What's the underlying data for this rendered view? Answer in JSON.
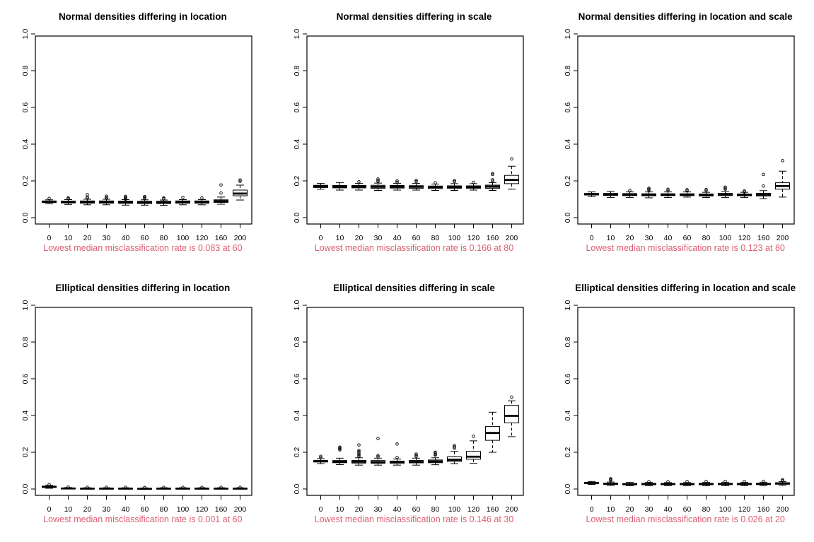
{
  "colors": {
    "background": "#ffffff",
    "axis_and_text": "#000000",
    "box_fill": "#ffffff",
    "caption_pink": "#dc5f73"
  },
  "chart_data": [
    {
      "type": "boxplot",
      "title": "Normal densities differing in location",
      "caption": "Lowest median misclassification rate is 0.083 at 60",
      "xlabel": "",
      "ylabel": "",
      "ylim": [
        0,
        1
      ],
      "yticks": [
        0.0,
        0.2,
        0.4,
        0.6,
        0.8,
        1.0
      ],
      "categories": [
        "0",
        "10",
        "20",
        "30",
        "40",
        "60",
        "80",
        "100",
        "120",
        "160",
        "200"
      ],
      "boxes": [
        {
          "low": 0.075,
          "q1": 0.082,
          "median": 0.086,
          "q3": 0.091,
          "high": 0.097,
          "outliers": [
            0.105
          ]
        },
        {
          "low": 0.072,
          "q1": 0.08,
          "median": 0.085,
          "q3": 0.09,
          "high": 0.098,
          "outliers": [
            0.103,
            0.108
          ]
        },
        {
          "low": 0.07,
          "q1": 0.079,
          "median": 0.085,
          "q3": 0.091,
          "high": 0.1,
          "outliers": [
            0.106,
            0.112,
            0.125
          ]
        },
        {
          "low": 0.07,
          "q1": 0.079,
          "median": 0.085,
          "q3": 0.091,
          "high": 0.1,
          "outliers": [
            0.105,
            0.11,
            0.117
          ]
        },
        {
          "low": 0.068,
          "q1": 0.078,
          "median": 0.084,
          "q3": 0.09,
          "high": 0.098,
          "outliers": [
            0.1,
            0.106,
            0.111,
            0.116
          ]
        },
        {
          "low": 0.068,
          "q1": 0.077,
          "median": 0.083,
          "q3": 0.089,
          "high": 0.097,
          "outliers": [
            0.105,
            0.11,
            0.115
          ]
        },
        {
          "low": 0.067,
          "q1": 0.077,
          "median": 0.084,
          "q3": 0.089,
          "high": 0.096,
          "outliers": [
            0.103,
            0.108
          ]
        },
        {
          "low": 0.07,
          "q1": 0.079,
          "median": 0.086,
          "q3": 0.091,
          "high": 0.098,
          "outliers": [
            0.11
          ]
        },
        {
          "low": 0.07,
          "q1": 0.079,
          "median": 0.086,
          "q3": 0.091,
          "high": 0.098,
          "outliers": [
            0.107
          ]
        },
        {
          "low": 0.073,
          "q1": 0.083,
          "median": 0.09,
          "q3": 0.097,
          "high": 0.112,
          "outliers": [
            0.134,
            0.178
          ]
        },
        {
          "low": 0.096,
          "q1": 0.119,
          "median": 0.131,
          "q3": 0.15,
          "high": 0.177,
          "outliers": [
            0.198,
            0.205
          ]
        }
      ]
    },
    {
      "type": "boxplot",
      "title": "Normal densities differing in scale",
      "caption": "Lowest median misclassification rate is 0.166 at 80",
      "xlabel": "",
      "ylabel": "",
      "ylim": [
        0,
        1
      ],
      "yticks": [
        0.0,
        0.2,
        0.4,
        0.6,
        0.8,
        1.0
      ],
      "categories": [
        "0",
        "10",
        "20",
        "30",
        "40",
        "60",
        "80",
        "100",
        "120",
        "160",
        "200"
      ],
      "boxes": [
        {
          "low": 0.155,
          "q1": 0.164,
          "median": 0.17,
          "q3": 0.176,
          "high": 0.186,
          "outliers": []
        },
        {
          "low": 0.15,
          "q1": 0.162,
          "median": 0.169,
          "q3": 0.175,
          "high": 0.19,
          "outliers": []
        },
        {
          "low": 0.15,
          "q1": 0.162,
          "median": 0.169,
          "q3": 0.175,
          "high": 0.186,
          "outliers": [
            0.195
          ]
        },
        {
          "low": 0.148,
          "q1": 0.16,
          "median": 0.168,
          "q3": 0.176,
          "high": 0.188,
          "outliers": [
            0.197,
            0.203,
            0.21
          ]
        },
        {
          "low": 0.15,
          "q1": 0.161,
          "median": 0.168,
          "q3": 0.175,
          "high": 0.187,
          "outliers": [
            0.193,
            0.2
          ]
        },
        {
          "low": 0.15,
          "q1": 0.16,
          "median": 0.168,
          "q3": 0.174,
          "high": 0.186,
          "outliers": [
            0.196,
            0.203
          ]
        },
        {
          "low": 0.148,
          "q1": 0.158,
          "median": 0.166,
          "q3": 0.172,
          "high": 0.183,
          "outliers": [
            0.19
          ]
        },
        {
          "low": 0.148,
          "q1": 0.16,
          "median": 0.167,
          "q3": 0.173,
          "high": 0.185,
          "outliers": [
            0.196,
            0.202
          ]
        },
        {
          "low": 0.15,
          "q1": 0.16,
          "median": 0.167,
          "q3": 0.173,
          "high": 0.185,
          "outliers": [
            0.192
          ]
        },
        {
          "low": 0.148,
          "q1": 0.16,
          "median": 0.169,
          "q3": 0.177,
          "high": 0.19,
          "outliers": [
            0.2,
            0.206,
            0.235,
            0.241
          ]
        },
        {
          "low": 0.155,
          "q1": 0.185,
          "median": 0.205,
          "q3": 0.23,
          "high": 0.28,
          "outliers": [
            0.32
          ]
        }
      ]
    },
    {
      "type": "boxplot",
      "title": "Normal densities differing in location and scale",
      "caption": "Lowest median misclassification rate is 0.123 at 80",
      "xlabel": "",
      "ylabel": "",
      "ylim": [
        0,
        1
      ],
      "yticks": [
        0.0,
        0.2,
        0.4,
        0.6,
        0.8,
        1.0
      ],
      "categories": [
        "0",
        "10",
        "20",
        "30",
        "40",
        "60",
        "80",
        "100",
        "120",
        "160",
        "200"
      ],
      "boxes": [
        {
          "low": 0.115,
          "q1": 0.123,
          "median": 0.128,
          "q3": 0.132,
          "high": 0.14,
          "outliers": []
        },
        {
          "low": 0.11,
          "q1": 0.121,
          "median": 0.127,
          "q3": 0.132,
          "high": 0.143,
          "outliers": []
        },
        {
          "low": 0.11,
          "q1": 0.12,
          "median": 0.126,
          "q3": 0.131,
          "high": 0.14,
          "outliers": [
            0.148
          ]
        },
        {
          "low": 0.108,
          "q1": 0.119,
          "median": 0.125,
          "q3": 0.13,
          "high": 0.14,
          "outliers": [
            0.15,
            0.155,
            0.16
          ]
        },
        {
          "low": 0.11,
          "q1": 0.12,
          "median": 0.125,
          "q3": 0.13,
          "high": 0.14,
          "outliers": [
            0.148,
            0.155
          ]
        },
        {
          "low": 0.112,
          "q1": 0.12,
          "median": 0.125,
          "q3": 0.13,
          "high": 0.14,
          "outliers": [
            0.148,
            0.152
          ]
        },
        {
          "low": 0.11,
          "q1": 0.118,
          "median": 0.123,
          "q3": 0.129,
          "high": 0.138,
          "outliers": [
            0.148,
            0.153
          ]
        },
        {
          "low": 0.11,
          "q1": 0.12,
          "median": 0.127,
          "q3": 0.132,
          "high": 0.142,
          "outliers": [
            0.155,
            0.16,
            0.166
          ]
        },
        {
          "low": 0.11,
          "q1": 0.119,
          "median": 0.124,
          "q3": 0.129,
          "high": 0.138,
          "outliers": [
            0.14,
            0.145
          ]
        },
        {
          "low": 0.103,
          "q1": 0.118,
          "median": 0.125,
          "q3": 0.133,
          "high": 0.147,
          "outliers": [
            0.172,
            0.235
          ]
        },
        {
          "low": 0.112,
          "q1": 0.155,
          "median": 0.172,
          "q3": 0.19,
          "high": 0.253,
          "outliers": [
            0.31
          ]
        }
      ]
    },
    {
      "type": "boxplot",
      "title": "Elliptical densities differing in location",
      "caption": "Lowest median misclassification rate is 0.001 at 60",
      "xlabel": "",
      "ylabel": "",
      "ylim": [
        0,
        1
      ],
      "yticks": [
        0.0,
        0.2,
        0.4,
        0.6,
        0.8,
        1.0
      ],
      "categories": [
        "0",
        "10",
        "20",
        "30",
        "40",
        "60",
        "80",
        "100",
        "120",
        "160",
        "200"
      ],
      "boxes": [
        {
          "low": 0.004,
          "q1": 0.008,
          "median": 0.012,
          "q3": 0.016,
          "high": 0.02,
          "outliers": [
            0.024
          ]
        },
        {
          "low": 0.0,
          "q1": 0.001,
          "median": 0.003,
          "q3": 0.005,
          "high": 0.008,
          "outliers": [
            0.01
          ]
        },
        {
          "low": 0.0,
          "q1": 0.001,
          "median": 0.002,
          "q3": 0.004,
          "high": 0.007,
          "outliers": [
            0.009
          ]
        },
        {
          "low": 0.0,
          "q1": 0.001,
          "median": 0.002,
          "q3": 0.004,
          "high": 0.007,
          "outliers": [
            0.009
          ]
        },
        {
          "low": 0.0,
          "q1": 0.001,
          "median": 0.002,
          "q3": 0.004,
          "high": 0.007,
          "outliers": [
            0.009
          ]
        },
        {
          "low": 0.0,
          "q1": 0.001,
          "median": 0.001,
          "q3": 0.003,
          "high": 0.006,
          "outliers": [
            0.008
          ]
        },
        {
          "low": 0.0,
          "q1": 0.001,
          "median": 0.002,
          "q3": 0.004,
          "high": 0.007,
          "outliers": [
            0.009
          ]
        },
        {
          "low": 0.0,
          "q1": 0.001,
          "median": 0.002,
          "q3": 0.004,
          "high": 0.007,
          "outliers": [
            0.009
          ]
        },
        {
          "low": 0.0,
          "q1": 0.001,
          "median": 0.002,
          "q3": 0.004,
          "high": 0.007,
          "outliers": [
            0.009
          ]
        },
        {
          "low": 0.0,
          "q1": 0.001,
          "median": 0.002,
          "q3": 0.004,
          "high": 0.007,
          "outliers": [
            0.009
          ]
        },
        {
          "low": 0.0,
          "q1": 0.001,
          "median": 0.002,
          "q3": 0.004,
          "high": 0.007,
          "outliers": [
            0.009
          ]
        }
      ]
    },
    {
      "type": "boxplot",
      "title": "Elliptical densities differing in scale",
      "caption": "Lowest median misclassification rate is 0.146 at 30",
      "xlabel": "",
      "ylabel": "",
      "ylim": [
        0,
        1
      ],
      "yticks": [
        0.0,
        0.2,
        0.4,
        0.6,
        0.8,
        1.0
      ],
      "categories": [
        "0",
        "10",
        "20",
        "30",
        "40",
        "60",
        "80",
        "100",
        "120",
        "160",
        "200"
      ],
      "boxes": [
        {
          "low": 0.138,
          "q1": 0.147,
          "median": 0.151,
          "q3": 0.156,
          "high": 0.165,
          "outliers": [
            0.172,
            0.178
          ]
        },
        {
          "low": 0.133,
          "q1": 0.143,
          "median": 0.149,
          "q3": 0.155,
          "high": 0.168,
          "outliers": [
            0.213,
            0.218,
            0.223,
            0.228
          ]
        },
        {
          "low": 0.13,
          "q1": 0.141,
          "median": 0.148,
          "q3": 0.156,
          "high": 0.17,
          "outliers": [
            0.178,
            0.184,
            0.19,
            0.196,
            0.203,
            0.21,
            0.24
          ]
        },
        {
          "low": 0.13,
          "q1": 0.14,
          "median": 0.146,
          "q3": 0.155,
          "high": 0.168,
          "outliers": [
            0.175,
            0.182,
            0.275
          ]
        },
        {
          "low": 0.13,
          "q1": 0.139,
          "median": 0.147,
          "q3": 0.152,
          "high": 0.163,
          "outliers": [
            0.172,
            0.245
          ]
        },
        {
          "low": 0.13,
          "q1": 0.142,
          "median": 0.148,
          "q3": 0.156,
          "high": 0.168,
          "outliers": [
            0.178,
            0.184,
            0.19
          ]
        },
        {
          "low": 0.132,
          "q1": 0.143,
          "median": 0.15,
          "q3": 0.158,
          "high": 0.17,
          "outliers": [
            0.184,
            0.189,
            0.195,
            0.2
          ]
        },
        {
          "low": 0.138,
          "q1": 0.15,
          "median": 0.159,
          "q3": 0.175,
          "high": 0.205,
          "outliers": [
            0.222,
            0.229,
            0.237
          ]
        },
        {
          "low": 0.14,
          "q1": 0.162,
          "median": 0.176,
          "q3": 0.205,
          "high": 0.262,
          "outliers": [
            0.287
          ]
        },
        {
          "low": 0.2,
          "q1": 0.265,
          "median": 0.305,
          "q3": 0.34,
          "high": 0.418,
          "outliers": []
        },
        {
          "low": 0.285,
          "q1": 0.36,
          "median": 0.398,
          "q3": 0.455,
          "high": 0.48,
          "outliers": [
            0.5
          ]
        }
      ]
    },
    {
      "type": "boxplot",
      "title": "Elliptical densities differing in location and scale",
      "caption": "Lowest median misclassification rate is 0.026 at 20",
      "xlabel": "",
      "ylabel": "",
      "ylim": [
        0,
        1
      ],
      "yticks": [
        0.0,
        0.2,
        0.4,
        0.6,
        0.8,
        1.0
      ],
      "categories": [
        "0",
        "10",
        "20",
        "30",
        "40",
        "60",
        "80",
        "100",
        "120",
        "160",
        "200"
      ],
      "boxes": [
        {
          "low": 0.025,
          "q1": 0.03,
          "median": 0.033,
          "q3": 0.036,
          "high": 0.041,
          "outliers": []
        },
        {
          "low": 0.019,
          "q1": 0.025,
          "median": 0.028,
          "q3": 0.032,
          "high": 0.038,
          "outliers": [
            0.048,
            0.052,
            0.056
          ]
        },
        {
          "low": 0.018,
          "q1": 0.023,
          "median": 0.026,
          "q3": 0.03,
          "high": 0.036,
          "outliers": []
        },
        {
          "low": 0.018,
          "q1": 0.023,
          "median": 0.027,
          "q3": 0.031,
          "high": 0.036,
          "outliers": [
            0.04
          ]
        },
        {
          "low": 0.018,
          "q1": 0.023,
          "median": 0.027,
          "q3": 0.03,
          "high": 0.035,
          "outliers": [
            0.04
          ]
        },
        {
          "low": 0.018,
          "q1": 0.023,
          "median": 0.027,
          "q3": 0.03,
          "high": 0.035,
          "outliers": [
            0.041
          ]
        },
        {
          "low": 0.018,
          "q1": 0.023,
          "median": 0.027,
          "q3": 0.031,
          "high": 0.036,
          "outliers": [
            0.042
          ]
        },
        {
          "low": 0.018,
          "q1": 0.024,
          "median": 0.027,
          "q3": 0.031,
          "high": 0.036,
          "outliers": [
            0.042
          ]
        },
        {
          "low": 0.018,
          "q1": 0.024,
          "median": 0.027,
          "q3": 0.031,
          "high": 0.036,
          "outliers": [
            0.041
          ]
        },
        {
          "low": 0.019,
          "q1": 0.024,
          "median": 0.028,
          "q3": 0.031,
          "high": 0.037,
          "outliers": [
            0.042
          ]
        },
        {
          "low": 0.02,
          "q1": 0.026,
          "median": 0.03,
          "q3": 0.034,
          "high": 0.04,
          "outliers": [
            0.046,
            0.05
          ]
        }
      ]
    }
  ]
}
